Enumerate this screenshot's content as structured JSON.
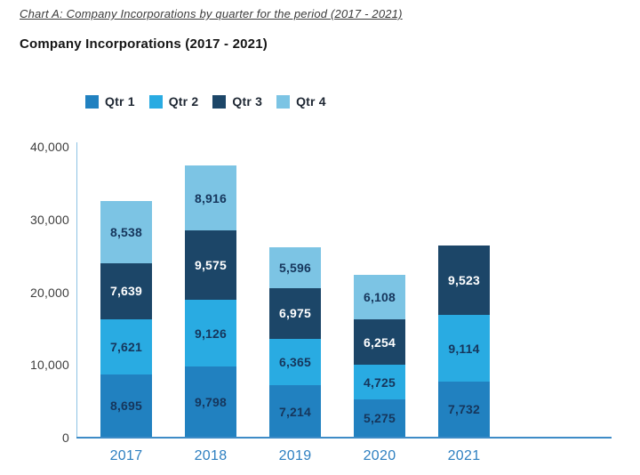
{
  "page": {
    "title": "Chart A: Company Incorporations by quarter for the period (2017 - 2021)",
    "subtitle": "Company Incorporations (2017 - 2021)"
  },
  "chart_data": {
    "type": "bar",
    "stacked": true,
    "title": "Company Incorporations (2017 - 2021)",
    "categories": [
      "2017",
      "2018",
      "2019",
      "2020",
      "2021"
    ],
    "series": [
      {
        "name": "Qtr 1",
        "color": "#2181c0",
        "label_color": "#16365c",
        "values": [
          8695,
          9798,
          7214,
          5275,
          7732
        ]
      },
      {
        "name": "Qtr 2",
        "color": "#29abe2",
        "label_color": "#16365c",
        "values": [
          7621,
          9126,
          6365,
          4725,
          9114
        ]
      },
      {
        "name": "Qtr 3",
        "color": "#1c4668",
        "label_color": "#ffffff",
        "values": [
          7639,
          9575,
          6975,
          6254,
          9523
        ]
      },
      {
        "name": "Qtr 4",
        "color": "#7cc4e4",
        "label_color": "#16365c",
        "values": [
          8538,
          8916,
          5596,
          6108,
          null
        ]
      }
    ],
    "y_ticks": [
      0,
      10000,
      20000,
      30000,
      40000
    ],
    "y_tick_labels": [
      "0",
      "10,000",
      "20,000",
      "30,000",
      "40,000"
    ],
    "ylim": [
      0,
      40000
    ],
    "legend_position": "top",
    "grid": false,
    "data_labels": true,
    "axis_color": "#3e8cc7"
  }
}
